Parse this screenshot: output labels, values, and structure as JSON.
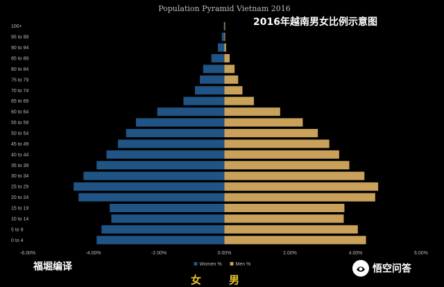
{
  "overlay": {
    "title": "2016年越南男女比例示意图",
    "credit": "福堀编译",
    "female_label": "女",
    "male_label": "男",
    "watermark": "悟空问答"
  },
  "colors": {
    "women": "#1f5485",
    "men": "#c9a15a",
    "background": "#000000",
    "text": "#bdbdbd",
    "annotation": "#e8c531"
  },
  "chart_data": {
    "type": "bar",
    "orientation": "horizontal",
    "title": "Population Pyramid Vietnam 2016",
    "categories": [
      "0 to 4",
      "5 to 9",
      "10 to 14",
      "15 to 19",
      "20 to 24",
      "25 to 29",
      "30 to 34",
      "35 to 39",
      "40 to 44",
      "45 to 49",
      "50 to 54",
      "55 to 59",
      "60 to 64",
      "65 to 69",
      "70 to 74",
      "75 to 79",
      "80 to 84",
      "85 to 89",
      "90 to 94",
      "95 to 99",
      "100+"
    ],
    "series": [
      {
        "name": "Women %",
        "values": [
          -3.9,
          -3.75,
          -3.45,
          -3.5,
          -4.45,
          -4.6,
          -4.3,
          -3.9,
          -3.6,
          -3.25,
          -3.0,
          -2.7,
          -2.05,
          -1.25,
          -0.9,
          -0.75,
          -0.65,
          -0.4,
          -0.2,
          -0.08,
          -0.02
        ]
      },
      {
        "name": "Men %",
        "values": [
          4.32,
          4.07,
          3.64,
          3.66,
          4.6,
          4.69,
          4.27,
          3.81,
          3.5,
          3.2,
          2.85,
          2.39,
          1.7,
          0.9,
          0.55,
          0.42,
          0.31,
          0.16,
          0.05,
          0.02,
          0.01
        ]
      }
    ],
    "x_ticks": [
      "-6.00%",
      "-4.00%",
      "-2.00%",
      "0.00%",
      "2.00%",
      "4.00%",
      "6.00%"
    ],
    "xlim": [
      -6,
      6
    ],
    "grid": false,
    "legend": "bottom"
  }
}
